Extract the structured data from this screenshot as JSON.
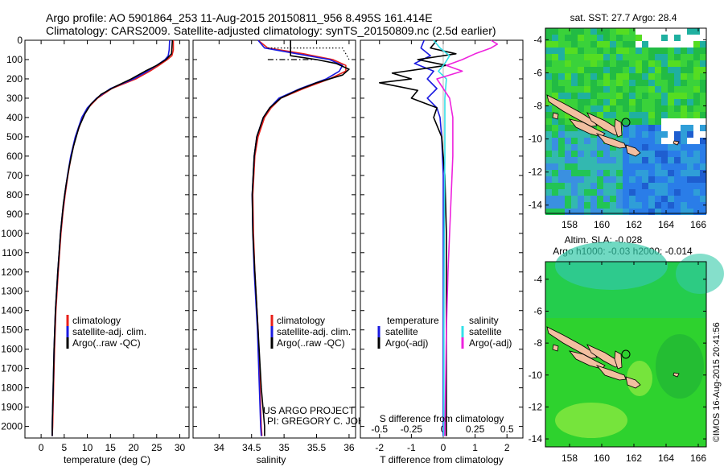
{
  "header": {
    "line1": "Argo profile: AO 5901864_253 11-Aug-2015 20150811_956 8.495S 161.414E",
    "line2": "Climatology: CARS2009. Satellite-adjusted climatology: synTS_20150809.nc (2.5d earlier)"
  },
  "colors": {
    "climatology": "#e8201a",
    "satellite": "#1a1ae0",
    "argo": "#000000",
    "satellite_cyan": "#33e0e8",
    "argo_magenta": "#ee22dd",
    "land": "#f2bfa0"
  },
  "chart_data": [
    {
      "type": "line",
      "name": "temperature",
      "xlabel": "temperature (deg C)",
      "ylabel": "",
      "xlim": [
        -3.5,
        32
      ],
      "ylim": [
        2060,
        0
      ],
      "xticks": [
        0,
        5,
        10,
        15,
        20,
        25,
        30
      ],
      "yticks": [
        0,
        100,
        200,
        300,
        400,
        500,
        600,
        700,
        800,
        900,
        1000,
        1100,
        1200,
        1300,
        1400,
        1500,
        1600,
        1700,
        1800,
        1900,
        2000
      ],
      "legend": {
        "position": "lower-center",
        "entries": [
          "climatology",
          "satellite-adj. clim.",
          "Argo(..raw -QC)"
        ]
      },
      "series": [
        {
          "name": "climatology",
          "color": "red",
          "depth": [
            0,
            50,
            80,
            100,
            130,
            160,
            200,
            250,
            300,
            350,
            400,
            500,
            600,
            700,
            800,
            900,
            1000,
            1200,
            1400,
            1600,
            1800,
            2000,
            2050
          ],
          "values": [
            28.6,
            28.6,
            28.3,
            27.3,
            25.5,
            23.5,
            20.5,
            15.3,
            12.2,
            10.2,
            9.0,
            7.5,
            6.5,
            5.8,
            5.2,
            4.7,
            4.3,
            3.7,
            3.2,
            2.9,
            2.7,
            2.5,
            2.4
          ]
        },
        {
          "name": "satellite-adj. clim.",
          "color": "blue",
          "depth": [
            0,
            50,
            80,
            100,
            130,
            160,
            200,
            250,
            300,
            350,
            400,
            500,
            600,
            700,
            800,
            900,
            1000,
            1200,
            1400,
            1600,
            1800,
            2000,
            2050
          ],
          "values": [
            27.8,
            27.7,
            27.5,
            26.8,
            25.0,
            23.0,
            20.0,
            15.0,
            12.0,
            10.0,
            8.8,
            7.4,
            6.4,
            5.7,
            5.1,
            4.6,
            4.2,
            3.6,
            3.1,
            2.8,
            2.6,
            2.4,
            2.4
          ]
        },
        {
          "name": "Argo(..raw -QC)",
          "color": "black",
          "depth": [
            0,
            40,
            70,
            100,
            130,
            160,
            200,
            240,
            280,
            330,
            380,
            450,
            550,
            650,
            750,
            850,
            1000,
            1200,
            1400,
            1600,
            1800,
            2000,
            2050
          ],
          "values": [
            28.4,
            28.3,
            28.2,
            27.0,
            25.0,
            22.5,
            19.5,
            16.0,
            13.0,
            10.8,
            9.5,
            8.2,
            7.0,
            6.1,
            5.4,
            4.8,
            4.2,
            3.6,
            3.1,
            2.8,
            2.6,
            2.4,
            2.4
          ]
        }
      ]
    },
    {
      "type": "line",
      "name": "salinity",
      "xlabel": "salinity",
      "ylabel": "",
      "xlim": [
        33.6,
        36.1
      ],
      "ylim": [
        2060,
        0
      ],
      "xticks": [
        34,
        34.5,
        35,
        35.5,
        36
      ],
      "xticklabels": [
        "34",
        "34.5",
        "35",
        "35.5",
        "36"
      ],
      "legend": {
        "position": "lower-center",
        "entries": [
          "climatology",
          "satellite-adj. clim.",
          "Argo(..raw -QC)"
        ]
      },
      "series": [
        {
          "name": "climatology",
          "color": "red",
          "depth": [
            0,
            40,
            70,
            100,
            130,
            160,
            200,
            250,
            300,
            350,
            400,
            500,
            600,
            800,
            1000,
            1200,
            1500,
            1800,
            2000,
            2050
          ],
          "values": [
            34.6,
            34.75,
            35.3,
            35.75,
            35.95,
            35.95,
            35.7,
            35.3,
            34.95,
            34.8,
            34.7,
            34.6,
            34.55,
            34.52,
            34.53,
            34.55,
            34.6,
            34.63,
            34.65,
            34.66
          ]
        },
        {
          "name": "satellite-adj. clim.",
          "color": "blue",
          "depth": [
            0,
            40,
            70,
            100,
            130,
            160,
            200,
            250,
            300,
            350,
            400,
            500,
            600,
            800,
            1000,
            1200,
            1500,
            1800,
            2000,
            2050
          ],
          "values": [
            34.6,
            34.7,
            35.2,
            35.7,
            35.9,
            35.85,
            35.65,
            35.25,
            34.92,
            34.78,
            34.68,
            34.58,
            34.54,
            34.51,
            34.52,
            34.54,
            34.59,
            34.62,
            34.64,
            34.65
          ]
        },
        {
          "name": "Argo(..raw -QC)",
          "color": "black",
          "depth": [
            0,
            30,
            60,
            80,
            100,
            120,
            150,
            180,
            220,
            260,
            300,
            350,
            400,
            500,
            600,
            800,
            1000,
            1200,
            1500,
            1800,
            2000,
            2050
          ],
          "values": [
            35.1,
            35.1,
            35.1,
            35.1,
            35.5,
            35.8,
            36.0,
            35.9,
            35.5,
            35.2,
            34.95,
            34.78,
            34.68,
            34.58,
            34.54,
            34.51,
            34.52,
            34.55,
            34.6,
            34.65,
            34.7,
            34.7
          ]
        },
        {
          "name": "dotted",
          "color": "black",
          "style": "dotted",
          "depth": [
            40,
            40,
            100
          ],
          "values": [
            34.75,
            35.9,
            36.0
          ]
        },
        {
          "name": "dash-dot",
          "color": "black",
          "style": "dashdot",
          "depth": [
            100,
            100
          ],
          "values": [
            34.75,
            35.5
          ]
        }
      ]
    },
    {
      "type": "line",
      "name": "difference",
      "xlabel": "T difference from climatology",
      "xlabel2": "S difference from climatology",
      "xlim": [
        -2.6,
        2.5
      ],
      "ylim": [
        2060,
        0
      ],
      "xticks": [
        -2,
        -1,
        0,
        1,
        2
      ],
      "xticks_s": [
        -0.5,
        -0.25,
        0,
        0.25,
        0.5
      ],
      "xticklabels_s": [
        "-0.5",
        "-0.25",
        "0",
        "0.25",
        "0.5"
      ],
      "legend": {
        "position": "lower-center",
        "temperature_title": "temperature",
        "salinity_title": "salinity",
        "entries_t": [
          "satellite",
          "Argo(-adj)"
        ],
        "entries_s": [
          "satellite",
          "Argo(-adj)"
        ]
      },
      "series": [
        {
          "name": "temperature satellite",
          "color": "blue",
          "depth": [
            0,
            40,
            80,
            120,
            160,
            200,
            250,
            300,
            350,
            400,
            500,
            700,
            1000,
            1500,
            2050
          ],
          "values": [
            -0.6,
            -0.7,
            -0.4,
            -0.9,
            -0.3,
            -0.5,
            -0.2,
            -0.5,
            -0.2,
            -0.1,
            -0.05,
            0,
            0,
            0,
            0
          ]
        },
        {
          "name": "temperature Argo(-adj)",
          "color": "black",
          "depth": [
            0,
            40,
            70,
            100,
            130,
            170,
            200,
            220,
            260,
            300,
            350,
            400,
            500,
            700,
            1000,
            1500,
            2050
          ],
          "values": [
            -0.2,
            -0.4,
            0.4,
            -0.8,
            0.1,
            -1.6,
            -1.0,
            -2.0,
            -0.8,
            -1.0,
            -0.2,
            -0.3,
            -0.05,
            0.05,
            0.1,
            0.1,
            0.1
          ]
        },
        {
          "name": "salinity satellite",
          "color": "cyan",
          "depth": [
            0,
            40,
            80,
            120,
            160,
            200,
            300,
            400,
            600,
            1000,
            1500,
            2050
          ],
          "values": [
            -0.3,
            -0.1,
            0.2,
            0.05,
            -0.15,
            0.1,
            0.05,
            0.05,
            0.05,
            0.03,
            0.02,
            0.02
          ]
        },
        {
          "name": "salinity Argo(-adj)",
          "color": "magenta",
          "depth": [
            0,
            20,
            40,
            70,
            100,
            130,
            160,
            200,
            300,
            400,
            600,
            800,
            1000,
            1200,
            1500,
            2050
          ],
          "values": [
            1.5,
            1.7,
            1.5,
            1.0,
            0.6,
            0.1,
            0.6,
            -0.2,
            0.2,
            0.3,
            0.3,
            0.25,
            0.2,
            0.15,
            0.1,
            0.05
          ]
        }
      ]
    },
    {
      "type": "heatmap",
      "name": "sst-map",
      "title": "sat. SST: 27.7 Argo: 28.4",
      "xlim": [
        156.5,
        166.5
      ],
      "ylim": [
        -14.5,
        -3.3
      ],
      "xticks": [
        158,
        160,
        162,
        164,
        166
      ],
      "yticks": [
        -4,
        -6,
        -8,
        -10,
        -12,
        -14
      ],
      "float_position": {
        "lon": 161.414,
        "lat": -8.495
      }
    },
    {
      "type": "heatmap",
      "name": "sla-map",
      "title": "Altim. SLA: -0.028",
      "subtitle": "Argo h1000: -0.03 h2000: -0.014",
      "xlim": [
        156.5,
        166.5
      ],
      "ylim": [
        -14.5,
        -2.9
      ],
      "xticks": [
        158,
        160,
        162,
        164,
        166
      ],
      "yticks": [
        -4,
        -6,
        -8,
        -10,
        -12,
        -14
      ],
      "float_position": {
        "lon": 161.414,
        "lat": -8.495
      }
    }
  ],
  "credits": {
    "project": "US ARGO PROJECT",
    "pi": "PI: GREGORY C. JOHNSON",
    "stamp": "©IMOS 16-Aug-2015 20:41:56"
  }
}
